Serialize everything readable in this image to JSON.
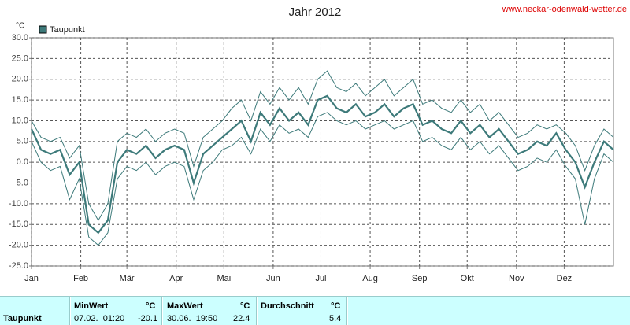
{
  "chart_data": {
    "type": "line",
    "title": "Jahr 2012",
    "source": "www.neckar-odenwald-wetter.de",
    "y_unit": "°C",
    "color": "#3d7a7a",
    "grid": true,
    "xlim": [
      0,
      366
    ],
    "ylim": [
      -25,
      30
    ],
    "xticks": [
      {
        "value": 0,
        "label": "Jan"
      },
      {
        "value": 31,
        "label": "Feb"
      },
      {
        "value": 60,
        "label": "Mär"
      },
      {
        "value": 91,
        "label": "Apr"
      },
      {
        "value": 121,
        "label": "Mai"
      },
      {
        "value": 152,
        "label": "Jun"
      },
      {
        "value": 182,
        "label": "Jul"
      },
      {
        "value": 213,
        "label": "Aug"
      },
      {
        "value": 244,
        "label": "Sep"
      },
      {
        "value": 274,
        "label": "Okt"
      },
      {
        "value": 305,
        "label": "Nov"
      },
      {
        "value": 335,
        "label": "Dez"
      }
    ],
    "yticks": [
      {
        "value": 30,
        "label": "30.0"
      },
      {
        "value": 25,
        "label": "25.0"
      },
      {
        "value": 20,
        "label": "20.0"
      },
      {
        "value": 15,
        "label": "15.0"
      },
      {
        "value": 10,
        "label": "10.0"
      },
      {
        "value": 5,
        "label": "5.0"
      },
      {
        "value": 0,
        "label": "0.0"
      },
      {
        "value": -5,
        "label": "-5.0"
      },
      {
        "value": -10,
        "label": "-10.0"
      },
      {
        "value": -15,
        "label": "-15.0"
      },
      {
        "value": -20,
        "label": "-20.0"
      },
      {
        "value": -25,
        "label": "-25.0"
      }
    ],
    "x": [
      0,
      6,
      12,
      18,
      24,
      30,
      36,
      42,
      48,
      54,
      60,
      66,
      72,
      78,
      84,
      90,
      96,
      102,
      108,
      114,
      120,
      126,
      132,
      138,
      144,
      150,
      156,
      162,
      168,
      174,
      180,
      186,
      192,
      198,
      204,
      210,
      216,
      222,
      228,
      234,
      240,
      246,
      252,
      258,
      264,
      270,
      276,
      282,
      288,
      294,
      300,
      306,
      312,
      318,
      324,
      330,
      336,
      342,
      348,
      354,
      360,
      366
    ],
    "series": [
      {
        "name": "Taupunkt",
        "color": "#3d7a7a",
        "values": [
          8,
          3,
          2,
          3,
          -3,
          0,
          -15,
          -17,
          -14,
          0,
          3,
          2,
          4,
          1,
          3,
          4,
          3,
          -5,
          2,
          4,
          6,
          8,
          10,
          5,
          12,
          9,
          13,
          10,
          12,
          9,
          15,
          16,
          13,
          12,
          14,
          11,
          12,
          14,
          11,
          13,
          14,
          9,
          10,
          8,
          7,
          10,
          7,
          9,
          6,
          8,
          5,
          2,
          3,
          5,
          4,
          7,
          3,
          0,
          -6,
          0,
          5,
          3
        ]
      },
      {
        "color": "#3d7a7a",
        "values": [
          5,
          0,
          -2,
          -1,
          -9,
          -4,
          -18,
          -20,
          -17,
          -4,
          -1,
          -2,
          0,
          -3,
          -1,
          0,
          -1,
          -9,
          -2,
          0,
          3,
          4,
          6,
          2,
          8,
          5,
          9,
          7,
          8,
          6,
          11,
          12,
          10,
          9,
          10,
          8,
          9,
          10,
          8,
          9,
          10,
          5,
          6,
          4,
          3,
          6,
          3,
          5,
          2,
          4,
          1,
          -2,
          -1,
          1,
          0,
          3,
          -1,
          -4,
          -15,
          -4,
          2,
          0
        ]
      },
      {
        "color": "#3d7a7a",
        "values": [
          10,
          6,
          5,
          6,
          1,
          4,
          -10,
          -14,
          -10,
          5,
          7,
          6,
          8,
          5,
          7,
          8,
          7,
          -1,
          6,
          8,
          10,
          13,
          15,
          10,
          17,
          14,
          18,
          15,
          18,
          14,
          20,
          22,
          18,
          17,
          19,
          16,
          18,
          20,
          16,
          18,
          20,
          14,
          15,
          13,
          12,
          15,
          12,
          14,
          10,
          12,
          9,
          6,
          7,
          9,
          8,
          9,
          7,
          4,
          -2,
          4,
          8,
          6
        ]
      }
    ]
  },
  "summary": {
    "label": "Taupunkt",
    "columns": [
      {
        "title": "MinWert",
        "unit": "°C",
        "time": "07.02.  01:20",
        "value": -20.1
      },
      {
        "title": "MaxWert",
        "unit": "°C",
        "time": "30.06.  19:50",
        "value": 22.4
      },
      {
        "title": "Durchschnitt",
        "unit": "°C",
        "value": 5.4
      }
    ]
  }
}
